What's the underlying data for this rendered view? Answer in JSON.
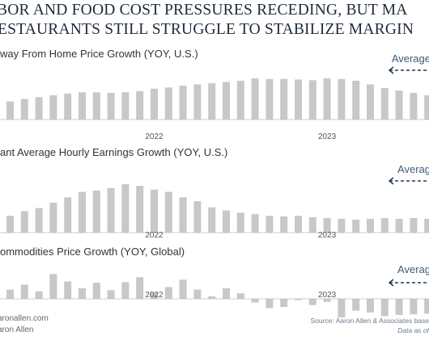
{
  "title_lines": [
    "BOR AND FOOD COST PRESSURES RECEDING, BUT MA",
    "ESTAURANTS STILL STRUGGLE TO STABILIZE MARGIN"
  ],
  "chart_data": [
    {
      "type": "bar",
      "title": "way From Home Price Growth (YOY, U.S.)",
      "average_label": "Average",
      "x_ticks": [
        {
          "label": "2022",
          "index": 10
        },
        {
          "label": "2023",
          "index": 22
        }
      ],
      "ylim": [
        0,
        8
      ],
      "values": [
        3.0,
        3.4,
        3.7,
        4.0,
        4.3,
        4.5,
        4.5,
        4.4,
        4.5,
        4.7,
        5.1,
        5.3,
        5.6,
        5.8,
        6.0,
        6.2,
        6.4,
        6.8,
        6.7,
        6.7,
        6.6,
        6.5,
        6.8,
        6.7,
        6.4,
        5.8,
        5.2,
        4.8,
        4.4,
        4.0,
        3.6
      ],
      "bar_color": "#c8c8c8"
    },
    {
      "type": "bar",
      "title": "ant Average Hourly Earnings Growth (YOY, U.S.)",
      "average_label": "Averag",
      "x_ticks": [
        {
          "label": "2022",
          "index": 10
        },
        {
          "label": "2023",
          "index": 22
        }
      ],
      "ylim": [
        0,
        8
      ],
      "values": [
        2.2,
        2.8,
        3.2,
        3.9,
        4.6,
        5.3,
        5.5,
        5.8,
        6.3,
        6.1,
        5.6,
        5.3,
        4.6,
        4.1,
        3.3,
        2.9,
        2.6,
        2.4,
        2.2,
        2.1,
        2.2,
        2.0,
        1.9,
        1.8,
        1.7,
        1.8,
        1.9,
        1.8,
        1.9,
        1.8,
        1.8
      ],
      "bar_color": "#c8c8c8"
    },
    {
      "type": "bar",
      "title": "ommodities Price Growth (YOY, Global)",
      "average_label": "Averag",
      "x_ticks": [
        {
          "label": "2022",
          "index": 10
        },
        {
          "label": "2023",
          "index": 22
        }
      ],
      "ylim": [
        -4,
        6
      ],
      "values": [
        1.5,
        2.3,
        1.2,
        4.0,
        2.8,
        1.7,
        2.6,
        1.4,
        2.7,
        3.5,
        1.0,
        1.9,
        3.1,
        1.5,
        0.4,
        1.7,
        0.9,
        -0.6,
        -1.5,
        -1.3,
        -0.2,
        -1.0,
        -0.5,
        -3.0,
        -1.9,
        -2.2,
        -2.8,
        -2.6,
        -2.5,
        -2.4,
        -3.2
      ],
      "bar_color": "#c8c8c8"
    }
  ],
  "footer": {
    "site": "aronallen.com",
    "author": "aron Allen",
    "source": "Source: Aaron Allen & Associates base",
    "data_as_of": "Data as of"
  }
}
